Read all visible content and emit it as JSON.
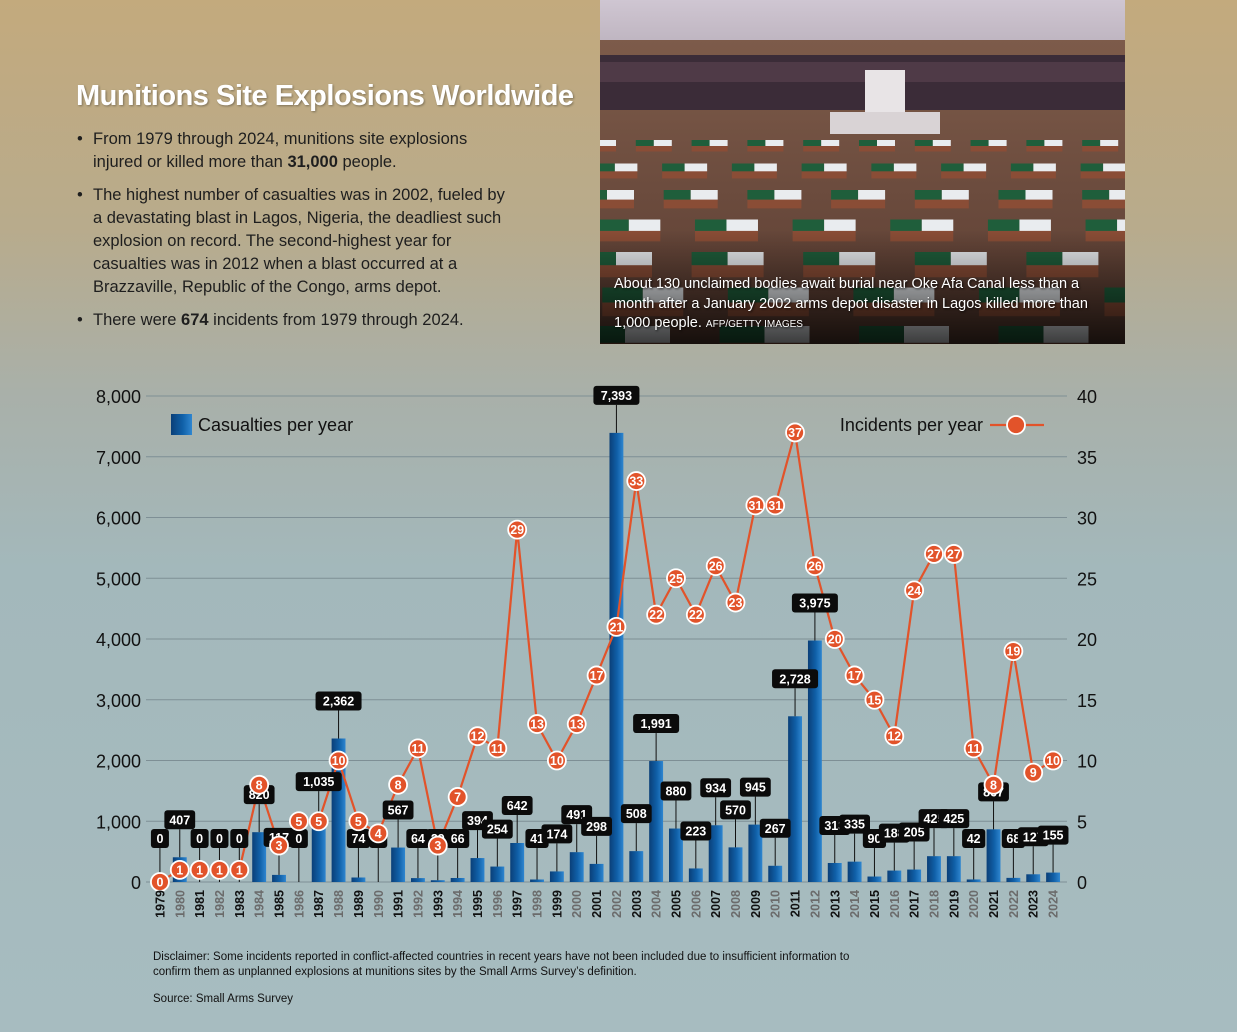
{
  "header": {
    "title": "Munitions Site Explosions Worldwide",
    "bullet1": {
      "a": "From 1979 through 2024, munitions site explosions injured or killed more than ",
      "b": "31,000",
      "c": " people."
    },
    "bullet2": "The highest number of casualties was in 2002, fueled by a devastating blast in Lagos, Nigeria, the deadliest such explosion on record. The second-highest year for casualties was in 2012 when a blast occurred at a Brazzaville, Republic of the Congo, arms depot.",
    "bullet3": {
      "a": "There were ",
      "b": "674",
      "c": " incidents from 1979 through 2024."
    }
  },
  "photo": {
    "caption": "About 130 unclaimed bodies await burial near Oke Afa Canal less than a month after a January 2002 arms depot disaster in Lagos killed more than 1,000 people.",
    "credit": "AFP/GETTY IMAGES"
  },
  "footer": {
    "disclaimer": "Disclaimer: Some incidents reported in conflict-affected countries in recent years have not been included due to insufficient information to confirm them as unplanned explosions at munitions sites by the Small Arms Survey’s definition.",
    "source": "Source: Small Arms Survey"
  },
  "colors": {
    "bar": "#1060a8",
    "bar_dark": "#0a3f78",
    "line": "#e2532a"
  },
  "chart_data": {
    "type": "bar",
    "title": "Munitions Site Explosions Worldwide",
    "categories": [
      "1979",
      "1980",
      "1981",
      "1982",
      "1983",
      "1984",
      "1985",
      "1986",
      "1987",
      "1988",
      "1989",
      "1990",
      "1991",
      "1992",
      "1993",
      "1994",
      "1995",
      "1996",
      "1997",
      "1998",
      "1999",
      "2000",
      "2001",
      "2002",
      "2003",
      "2004",
      "2005",
      "2006",
      "2007",
      "2008",
      "2009",
      "2010",
      "2011",
      "2012",
      "2013",
      "2014",
      "2015",
      "2016",
      "2017",
      "2018",
      "2019",
      "2020",
      "2021",
      "2022",
      "2023",
      "2024"
    ],
    "series": [
      {
        "name": "Casualties per year",
        "type": "bar",
        "axis": "left",
        "values": [
          0,
          407,
          0,
          0,
          0,
          820,
          117,
          0,
          1035,
          2362,
          74,
          0,
          567,
          64,
          29,
          66,
          394,
          254,
          642,
          41,
          174,
          491,
          298,
          7393,
          508,
          1991,
          880,
          223,
          934,
          570,
          945,
          267,
          2728,
          3975,
          313,
          335,
          90,
          188,
          205,
          425,
          425,
          42,
          867,
          68,
          127,
          155
        ]
      },
      {
        "name": "Incidents per year",
        "type": "line",
        "axis": "right",
        "values": [
          0,
          1,
          1,
          1,
          1,
          8,
          3,
          5,
          5,
          10,
          5,
          4,
          8,
          11,
          3,
          7,
          12,
          11,
          29,
          13,
          10,
          13,
          17,
          21,
          33,
          22,
          25,
          22,
          26,
          23,
          31,
          31,
          37,
          26,
          20,
          17,
          15,
          12,
          24,
          27,
          27,
          11,
          8,
          19,
          9,
          10
        ]
      }
    ],
    "ylim_left": [
      0,
      8000
    ],
    "ylim_right": [
      0,
      40
    ],
    "yticks_left": [
      "0",
      "1,000",
      "2,000",
      "3,000",
      "4,000",
      "5,000",
      "6,000",
      "7,000",
      "8,000"
    ],
    "yticks_right": [
      "0",
      "5",
      "10",
      "15",
      "20",
      "25",
      "30",
      "35",
      "40"
    ],
    "grid": true,
    "legend": [
      "top-left",
      "top-right"
    ]
  }
}
